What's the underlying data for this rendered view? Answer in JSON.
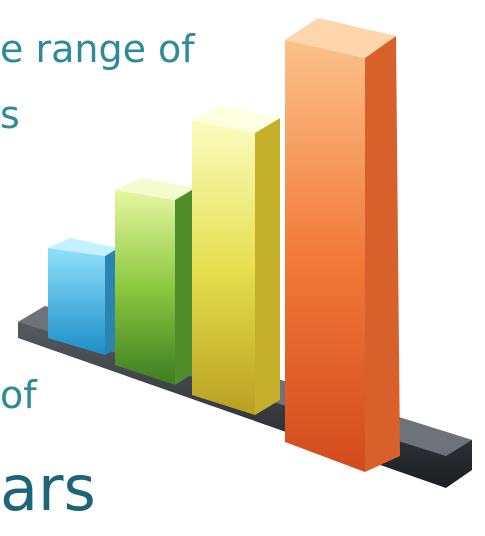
{
  "text": {
    "line1": "e range of",
    "line2": "s",
    "line3": "of",
    "line4": "ars"
  }
}
